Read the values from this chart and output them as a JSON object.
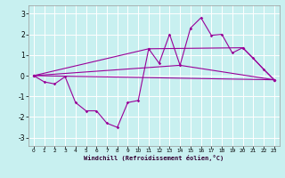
{
  "xlabel": "Windchill (Refroidissement éolien,°C)",
  "bg_color": "#c8f0f0",
  "line_color": "#990099",
  "grid_color": "#ffffff",
  "xlim": [
    -0.5,
    23.5
  ],
  "ylim": [
    -3.4,
    3.4
  ],
  "yticks": [
    -3,
    -2,
    -1,
    0,
    1,
    2,
    3
  ],
  "xticks": [
    0,
    1,
    2,
    3,
    4,
    5,
    6,
    7,
    8,
    9,
    10,
    11,
    12,
    13,
    14,
    15,
    16,
    17,
    18,
    19,
    20,
    21,
    22,
    23
  ],
  "series": [
    {
      "x": [
        0,
        1,
        2,
        3,
        4,
        5,
        6,
        7,
        8,
        9,
        10,
        11,
        12,
        13,
        14,
        15,
        16,
        17,
        18,
        19,
        20,
        21,
        22,
        23
      ],
      "y": [
        0.0,
        -0.3,
        -0.4,
        -0.05,
        -1.3,
        -1.7,
        -1.7,
        -2.3,
        -2.5,
        -1.3,
        -1.2,
        1.3,
        0.6,
        2.0,
        0.5,
        2.3,
        2.8,
        1.95,
        2.0,
        1.1,
        1.35,
        0.85,
        0.3,
        -0.2
      ]
    },
    {
      "x": [
        0,
        23
      ],
      "y": [
        0.0,
        -0.2
      ]
    },
    {
      "x": [
        0,
        14,
        23
      ],
      "y": [
        0.0,
        0.5,
        -0.2
      ]
    },
    {
      "x": [
        0,
        11,
        20,
        23
      ],
      "y": [
        0.0,
        1.3,
        1.35,
        -0.2
      ]
    }
  ]
}
